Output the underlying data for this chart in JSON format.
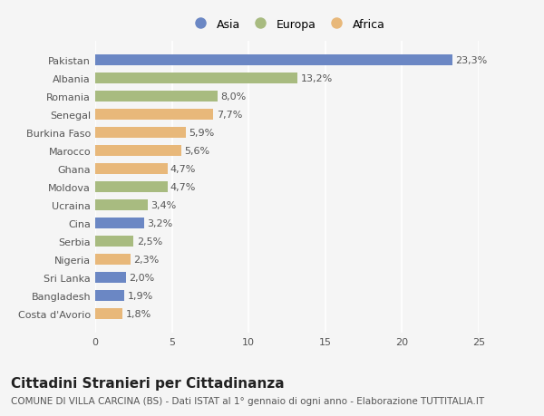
{
  "countries": [
    "Pakistan",
    "Albania",
    "Romania",
    "Senegal",
    "Burkina Faso",
    "Marocco",
    "Ghana",
    "Moldova",
    "Ucraina",
    "Cina",
    "Serbia",
    "Nigeria",
    "Sri Lanka",
    "Bangladesh",
    "Costa d'Avorio"
  ],
  "values": [
    23.3,
    13.2,
    8.0,
    7.7,
    5.9,
    5.6,
    4.7,
    4.7,
    3.4,
    3.2,
    2.5,
    2.3,
    2.0,
    1.9,
    1.8
  ],
  "labels": [
    "23,3%",
    "13,2%",
    "8,0%",
    "7,7%",
    "5,9%",
    "5,6%",
    "4,7%",
    "4,7%",
    "3,4%",
    "3,2%",
    "2,5%",
    "2,3%",
    "2,0%",
    "1,9%",
    "1,8%"
  ],
  "continents": [
    "Asia",
    "Europa",
    "Europa",
    "Africa",
    "Africa",
    "Africa",
    "Africa",
    "Europa",
    "Europa",
    "Asia",
    "Europa",
    "Africa",
    "Asia",
    "Asia",
    "Africa"
  ],
  "colors": {
    "Asia": "#6b87c4",
    "Europa": "#a8bb80",
    "Africa": "#e8b87a"
  },
  "legend_labels": [
    "Asia",
    "Europa",
    "Africa"
  ],
  "title": "Cittadini Stranieri per Cittadinanza",
  "subtitle": "COMUNE DI VILLA CARCINA (BS) - Dati ISTAT al 1° gennaio di ogni anno - Elaborazione TUTTITALIA.IT",
  "xlim": [
    0,
    25
  ],
  "xticks": [
    0,
    5,
    10,
    15,
    20,
    25
  ],
  "background_color": "#f5f5f5",
  "bar_height": 0.6,
  "label_fontsize": 8,
  "tick_fontsize": 8,
  "title_fontsize": 11,
  "subtitle_fontsize": 7.5
}
